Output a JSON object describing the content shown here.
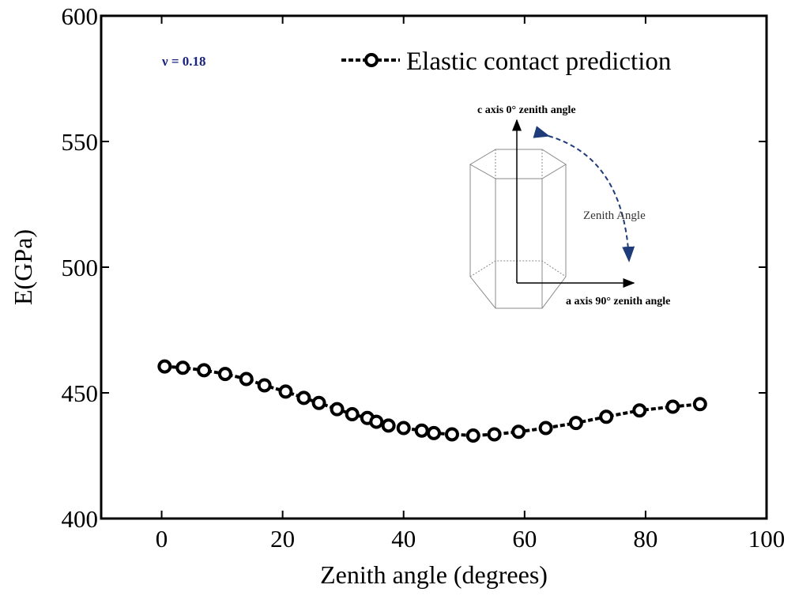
{
  "chart_data": {
    "type": "line",
    "xlabel": "Zenith angle (degrees)",
    "ylabel": "E(GPa)",
    "xlim": [
      -10,
      100
    ],
    "xticks": [
      0,
      20,
      40,
      60,
      80,
      100
    ],
    "ylim": [
      400,
      600
    ],
    "yticks": [
      400,
      450,
      500,
      550,
      600
    ],
    "legend": "upper right",
    "series": [
      {
        "name": "Elastic contact prediction",
        "color": "#000000",
        "x": [
          0.5,
          3.5,
          7,
          10.5,
          14,
          17,
          20.5,
          23.5,
          26,
          29,
          31.5,
          34,
          35.5,
          37.5,
          40,
          43,
          45,
          48,
          51.5,
          55,
          59,
          63.5,
          68.5,
          73.5,
          79,
          84.5,
          89
        ],
        "values": [
          460.5,
          460,
          459,
          457.5,
          455.5,
          453,
          450.5,
          448,
          446,
          443.5,
          441.5,
          440,
          438.5,
          437,
          436,
          435,
          434,
          433.5,
          433,
          433.5,
          434.5,
          436,
          438,
          440.5,
          443,
          444.5,
          445.5
        ]
      }
    ],
    "annotations": {
      "poisson": "ν = 0.18",
      "c_axis": "c axis 0° zenith angle",
      "a_axis": "a axis 90° zenith angle",
      "zenith_angle": "Zenith Angle"
    }
  }
}
